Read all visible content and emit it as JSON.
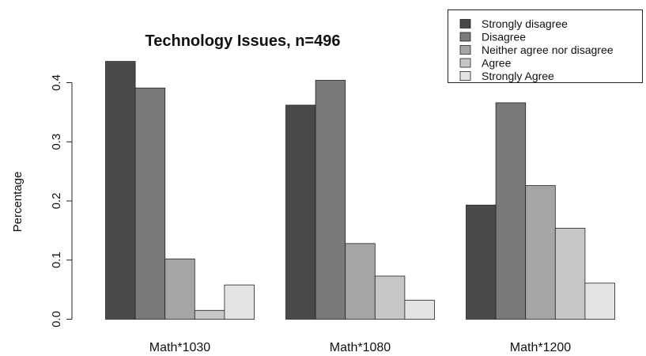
{
  "chart_data": {
    "type": "bar",
    "title": "Technology Issues, n=496",
    "xlabel": "",
    "ylabel": "Percentage",
    "categories": [
      "Math*1030",
      "Math*1080",
      "Math*1200"
    ],
    "yticks": [
      "0.0",
      "0.1",
      "0.2",
      "0.3",
      "0.4"
    ],
    "ylim": [
      0,
      0.4
    ],
    "legend_position": "top-right",
    "grid": false,
    "series": [
      {
        "name": "Strongly disagree",
        "color": "#4a4a4a",
        "values": [
          0.436,
          0.362,
          0.193
        ]
      },
      {
        "name": "Disagree",
        "color": "#7a7a7a",
        "values": [
          0.391,
          0.404,
          0.366
        ]
      },
      {
        "name": "Neither agree nor disagree",
        "color": "#a5a5a5",
        "values": [
          0.102,
          0.128,
          0.226
        ]
      },
      {
        "name": "Agree",
        "color": "#c6c6c6",
        "values": [
          0.015,
          0.073,
          0.154
        ]
      },
      {
        "name": "Strongly Agree",
        "color": "#e3e3e3",
        "values": [
          0.058,
          0.032,
          0.061
        ]
      }
    ]
  }
}
